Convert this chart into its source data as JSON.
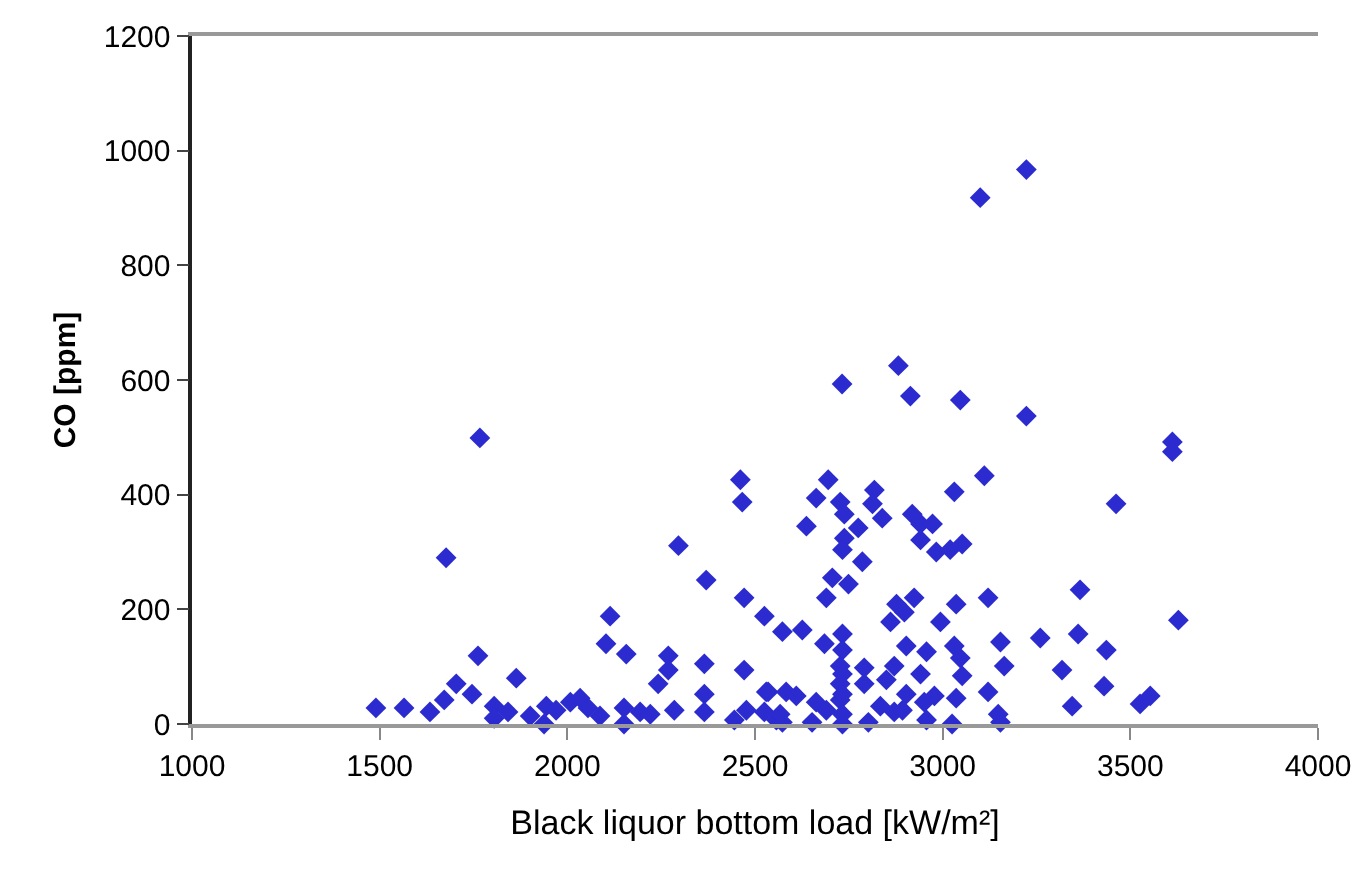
{
  "chart_data": {
    "type": "scatter",
    "xlabel": "Black liquor bottom load [kW/m²]",
    "ylabel": "CO [ppm]",
    "marker": "diamond",
    "grid": false,
    "xlim": [
      1000,
      4000
    ],
    "xticks": [
      1000,
      1500,
      2000,
      2500,
      3000,
      3500,
      4000
    ],
    "ylim": [
      0,
      1200
    ],
    "yticks": [
      0,
      200,
      400,
      600,
      800,
      1000,
      1200
    ],
    "series": [
      {
        "color": "#2b2bd0",
        "x": [
          3223,
          3100,
          2882,
          2732,
          2914,
          3047,
          3223,
          1767,
          1677,
          1490,
          1565,
          1634,
          1672,
          1704,
          1746,
          1762,
          1805,
          1805,
          1842,
          1864,
          1901,
          1944,
          1938,
          1970,
          2008,
          2034,
          2055,
          2087,
          2114,
          2103,
          2157,
          2151,
          2151,
          2194,
          2221,
          2242,
          2269,
          2269,
          2296,
          2285,
          2370,
          2365,
          2365,
          2365,
          2461,
          2466,
          2471,
          2471,
          2477,
          2445,
          2525,
          2530,
          2525,
          2557,
          3612,
          3612,
          3462,
          3628,
          3366,
          3361,
          3260,
          3436,
          3318,
          3430,
          3345,
          3526,
          3553,
          3111,
          3031,
          2695,
          2663,
          2727,
          2738,
          2637,
          2818,
          2813,
          2839,
          2775,
          2738,
          2733,
          2786,
          2919,
          2941,
          2973,
          2941,
          2983,
          3020,
          3052,
          2706,
          2749,
          2690,
          2924,
          2877,
          3036,
          3121,
          2898,
          2861,
          2994,
          2573,
          2626,
          2685,
          2733,
          2733,
          2903,
          3031,
          3154,
          2957,
          3047,
          2727,
          2791,
          2871,
          3164,
          2941,
          2791,
          2850,
          3052,
          2727,
          2903,
          2978,
          3036,
          3121,
          2535,
          2583,
          2610,
          2663,
          2727,
          2834,
          2951,
          2567,
          2690,
          2733,
          2871,
          3148,
          2573,
          2652,
          2733,
          2802,
          2957,
          3025,
          3154,
          2893,
          2733,
          2733
        ],
        "values": [
          967,
          918,
          625,
          593,
          572,
          565,
          537,
          499,
          290,
          28,
          28,
          21,
          42,
          70,
          52,
          119,
          31,
          10,
          21,
          80,
          14,
          31,
          0,
          24,
          38,
          45,
          28,
          14,
          188,
          140,
          122,
          28,
          0,
          21,
          17,
          70,
          119,
          94,
          311,
          24,
          251,
          105,
          52,
          21,
          426,
          387,
          220,
          94,
          24,
          7,
          188,
          56,
          21,
          7,
          492,
          475,
          384,
          181,
          234,
          157,
          150,
          129,
          94,
          66,
          31,
          35,
          49,
          433,
          405,
          426,
          394,
          387,
          366,
          345,
          408,
          384,
          359,
          342,
          324,
          304,
          283,
          366,
          349,
          349,
          321,
          300,
          304,
          314,
          255,
          244,
          220,
          220,
          209,
          209,
          220,
          195,
          178,
          178,
          161,
          164,
          140,
          157,
          129,
          136,
          136,
          143,
          126,
          115,
          101,
          98,
          101,
          101,
          87,
          70,
          77,
          84,
          70,
          52,
          49,
          45,
          56,
          56,
          56,
          49,
          38,
          42,
          31,
          38,
          17,
          24,
          17,
          21,
          17,
          3,
          3,
          0,
          3,
          7,
          0,
          3,
          24,
          52,
          87
        ]
      }
    ]
  }
}
